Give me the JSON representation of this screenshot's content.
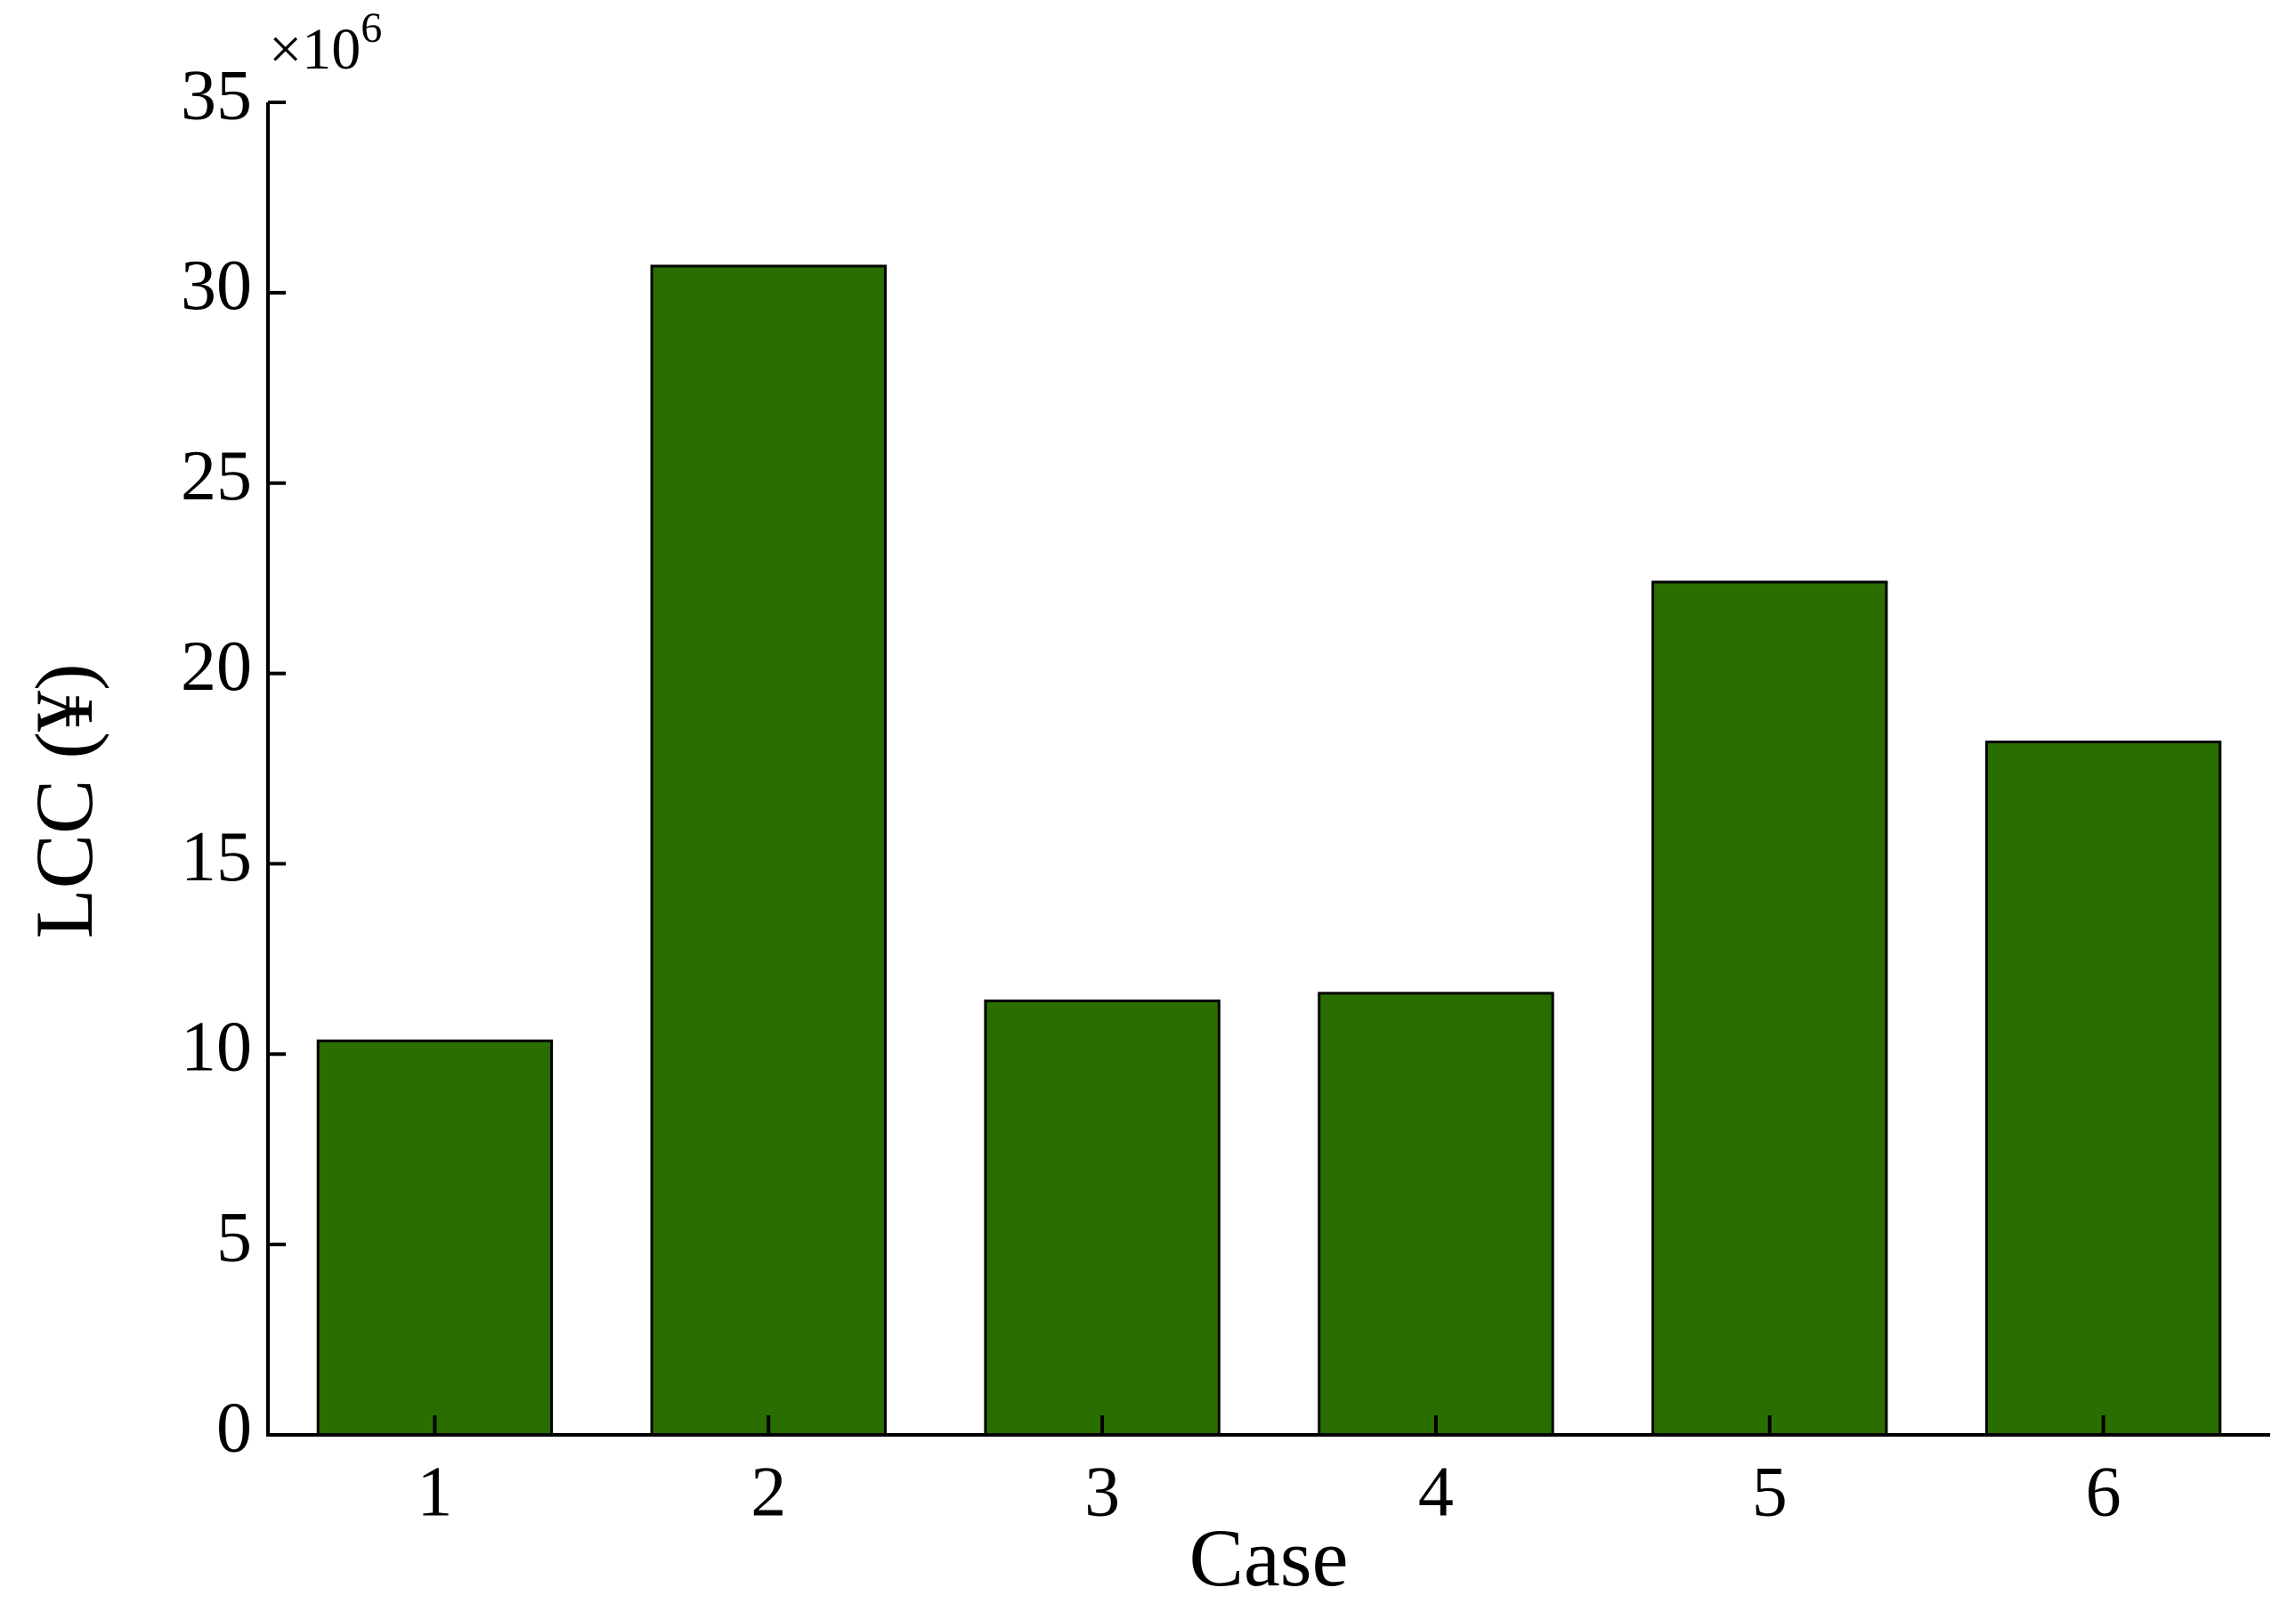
{
  "chart_data": {
    "type": "bar",
    "x_label": "Case",
    "y_label": "LCC (¥)",
    "y_multiplier": {
      "base": "×10",
      "exponent": "6"
    },
    "categories": [
      "1",
      "2",
      "3",
      "4",
      "5",
      "6"
    ],
    "values": [
      10.35,
      30.7,
      11.4,
      11.6,
      22.4,
      18.2
    ],
    "color": "#2a6e00",
    "ylim": [
      0,
      35
    ],
    "yticks": [
      0,
      5,
      10,
      15,
      20,
      25,
      30,
      35
    ],
    "grid": false
  }
}
